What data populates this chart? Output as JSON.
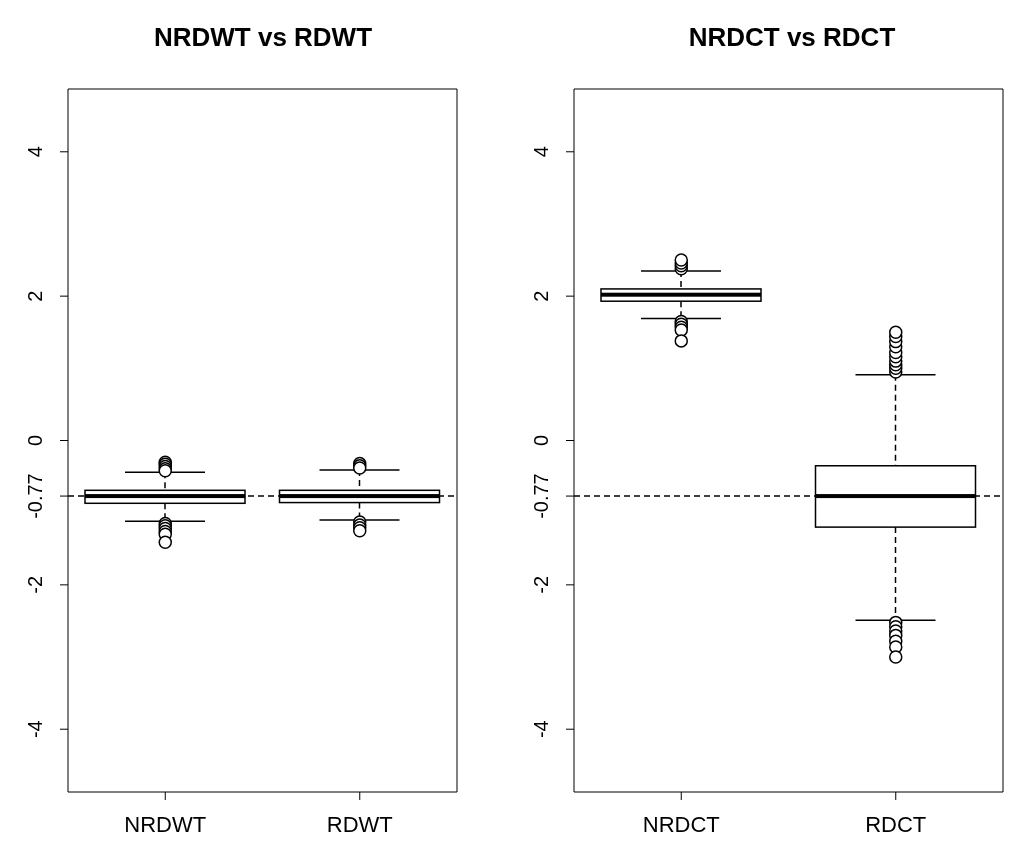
{
  "chart_data": [
    {
      "type": "box",
      "title": "NRDWT vs RDWT",
      "categories": [
        "NRDWT",
        "RDWT"
      ],
      "ylim": [
        -4.87,
        4.87
      ],
      "yticks": [
        -4,
        -2,
        -0.77,
        0,
        2,
        4
      ],
      "ref_lines": [
        {
          "axis": "y",
          "value": -0.77,
          "line_style": "dashed"
        }
      ],
      "boxes": [
        {
          "low": -1.12,
          "q1": -0.87,
          "median": -0.77,
          "q3": -0.69,
          "high": -0.44,
          "outliers": [
            -0.3,
            -0.33,
            -0.36,
            -0.39,
            -0.42,
            -1.15,
            -1.18,
            -1.22,
            -1.26,
            -1.3,
            -1.41
          ]
        },
        {
          "low": -1.1,
          "q1": -0.86,
          "median": -0.77,
          "q3": -0.69,
          "high": -0.41,
          "outliers": [
            -0.32,
            -0.35,
            -0.38,
            -1.13,
            -1.17,
            -1.21,
            -1.25
          ]
        }
      ]
    },
    {
      "type": "box",
      "title": "NRDCT vs RDCT",
      "categories": [
        "NRDCT",
        "RDCT"
      ],
      "ylim": [
        -4.87,
        4.87
      ],
      "yticks": [
        -4,
        -2,
        -0.77,
        0,
        2,
        4
      ],
      "ref_lines": [
        {
          "axis": "y",
          "value": -0.77,
          "line_style": "dashed"
        }
      ],
      "boxes": [
        {
          "low": 1.69,
          "q1": 1.93,
          "median": 2.02,
          "q3": 2.1,
          "high": 2.35,
          "outliers": [
            2.38,
            2.42,
            2.46,
            2.5,
            1.65,
            1.61,
            1.57,
            1.53,
            1.38
          ]
        },
        {
          "low": -2.49,
          "q1": -1.2,
          "median": -0.77,
          "q3": -0.35,
          "high": 0.91,
          "outliers": [
            0.95,
            1.0,
            1.05,
            1.1,
            1.16,
            1.22,
            1.3,
            1.37,
            1.44,
            1.5,
            -2.52,
            -2.58,
            -2.64,
            -2.7,
            -2.78,
            -2.86,
            -3.0
          ]
        }
      ]
    }
  ]
}
